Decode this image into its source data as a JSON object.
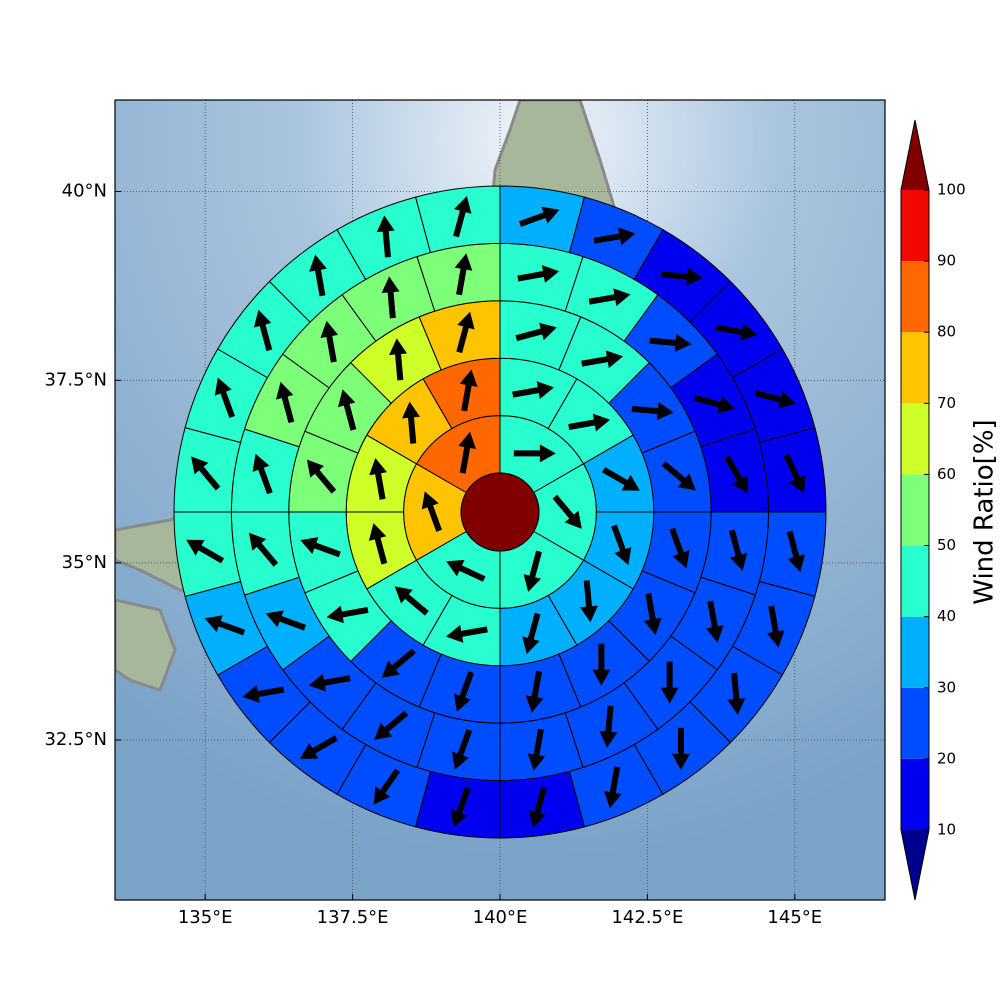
{
  "chart_data": {
    "type": "polar_grid_map",
    "projection": "mercator",
    "xlim": [
      133.47,
      146.53
    ],
    "ylim": [
      30.18,
      41.18
    ],
    "xticks": [
      {
        "value": 135,
        "label": "135°E"
      },
      {
        "value": 137.5,
        "label": "137.5°E"
      },
      {
        "value": 140,
        "label": "140°E"
      },
      {
        "value": 142.5,
        "label": "142.5°E"
      },
      {
        "value": 145,
        "label": "145°E"
      }
    ],
    "yticks": [
      {
        "value": 32.5,
        "label": "32.5°N"
      },
      {
        "value": 35,
        "label": "35°N"
      },
      {
        "value": 37.5,
        "label": "37.5°N"
      },
      {
        "value": 40,
        "label": "40°N"
      }
    ],
    "grid": true,
    "center_value": 100,
    "rings": [
      {
        "values": [
          45,
          45,
          45,
          45,
          75,
          85
        ],
        "directions": [
          90,
          140,
          195,
          295,
          340,
          10
        ]
      },
      {
        "values": [
          45,
          45,
          35,
          35,
          35,
          35,
          45,
          45,
          65,
          65,
          75,
          85
        ],
        "directions": [
          80,
          80,
          120,
          160,
          175,
          195,
          260,
          310,
          345,
          350,
          355,
          10
        ]
      },
      {
        "values": [
          45,
          45,
          25,
          25,
          25,
          25,
          25,
          25,
          25,
          25,
          45,
          45,
          55,
          55,
          65,
          75
        ],
        "directions": [
          75,
          80,
          95,
          130,
          160,
          170,
          180,
          190,
          200,
          230,
          260,
          290,
          320,
          345,
          355,
          15
        ]
      },
      {
        "values": [
          45,
          45,
          25,
          15,
          15,
          25,
          25,
          25,
          25,
          25,
          25,
          25,
          25,
          35,
          45,
          45,
          55,
          55,
          55,
          55
        ],
        "directions": [
          80,
          80,
          95,
          105,
          150,
          165,
          170,
          180,
          185,
          190,
          200,
          230,
          260,
          290,
          320,
          340,
          345,
          350,
          355,
          10
        ]
      },
      {
        "values": [
          35,
          25,
          15,
          15,
          15,
          15,
          25,
          25,
          25,
          25,
          25,
          15,
          15,
          25,
          25,
          25,
          35,
          45,
          45,
          45,
          45,
          45,
          45,
          45
        ],
        "directions": [
          70,
          80,
          95,
          100,
          105,
          155,
          165,
          170,
          175,
          180,
          190,
          195,
          200,
          215,
          240,
          260,
          290,
          300,
          320,
          340,
          345,
          350,
          355,
          15
        ]
      }
    ],
    "colorbar": {
      "label": "Wind Ratio[%]",
      "ticks": [
        10,
        20,
        30,
        40,
        50,
        60,
        70,
        80,
        90,
        100
      ],
      "colors": [
        "#0000f1",
        "#004cff",
        "#00b0ff",
        "#29ffce",
        "#7dff7a",
        "#ceff29",
        "#ffc400",
        "#ff6800",
        "#f10800"
      ],
      "under_color": "#00008f",
      "over_color": "#800000"
    }
  }
}
